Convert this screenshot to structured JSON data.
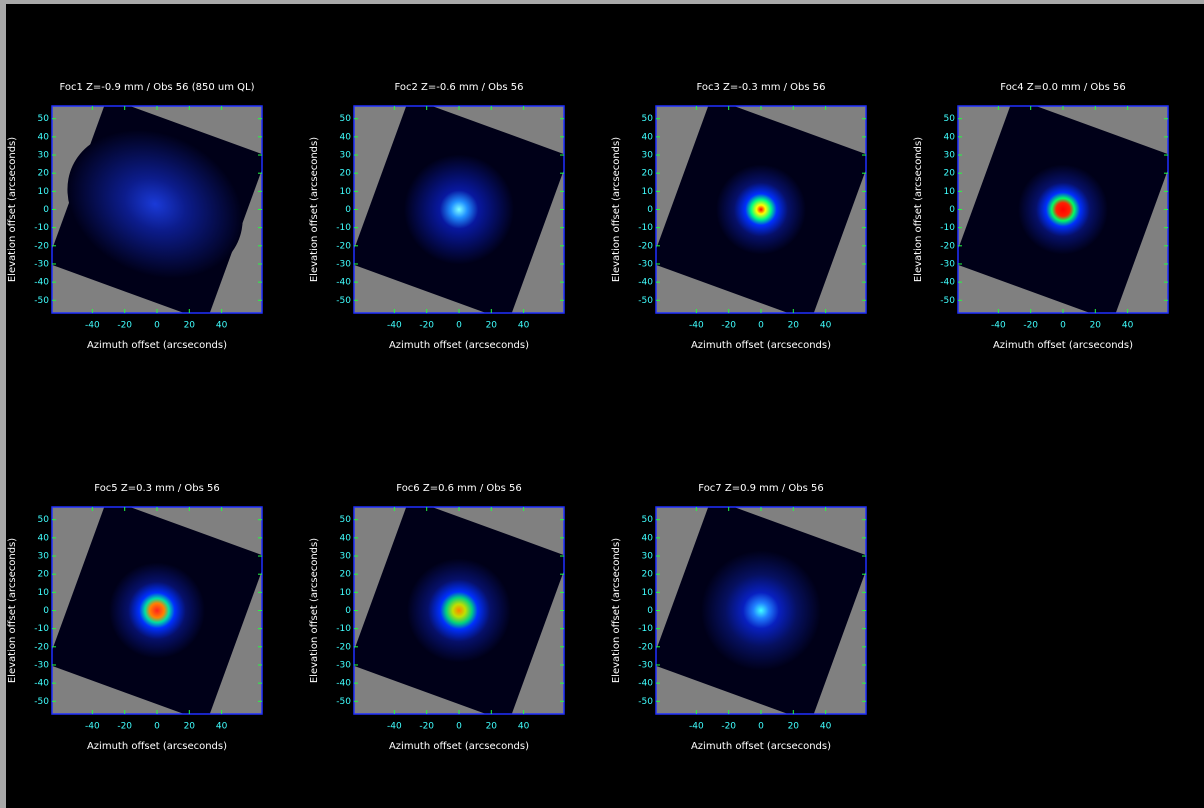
{
  "chart_data": [
    {
      "type": "image",
      "title": "Foc1 Z=-0.9 mm / Obs 56 (850 um QL)",
      "xlabel": "Azimuth offset (arcseconds)",
      "ylabel": "Elevation offset (arcseconds)",
      "xlim": [
        -65,
        65
      ],
      "ylim": [
        -57,
        57
      ],
      "xticks": [
        -40,
        -20,
        0,
        20,
        40
      ],
      "yticks": [
        -50,
        -40,
        -30,
        -20,
        -10,
        0,
        10,
        20,
        30,
        40,
        50
      ]
    },
    {
      "type": "image",
      "title": "Foc2 Z=-0.6 mm / Obs 56",
      "xlabel": "Azimuth offset (arcseconds)",
      "ylabel": "Elevation offset (arcseconds)",
      "xlim": [
        -65,
        65
      ],
      "ylim": [
        -57,
        57
      ],
      "xticks": [
        -40,
        -20,
        0,
        20,
        40
      ],
      "yticks": [
        -50,
        -40,
        -30,
        -20,
        -10,
        0,
        10,
        20,
        30,
        40,
        50
      ]
    },
    {
      "type": "image",
      "title": "Foc3 Z=-0.3 mm / Obs 56",
      "xlabel": "Azimuth offset (arcseconds)",
      "ylabel": "Elevation offset (arcseconds)",
      "xlim": [
        -65,
        65
      ],
      "ylim": [
        -57,
        57
      ],
      "xticks": [
        -40,
        -20,
        0,
        20,
        40
      ],
      "yticks": [
        -50,
        -40,
        -30,
        -20,
        -10,
        0,
        10,
        20,
        30,
        40,
        50
      ]
    },
    {
      "type": "image",
      "title": "Foc4 Z=0.0 mm / Obs 56",
      "xlabel": "Azimuth offset (arcseconds)",
      "ylabel": "Elevation offset (arcseconds)",
      "xlim": [
        -65,
        65
      ],
      "ylim": [
        -57,
        57
      ],
      "xticks": [
        -40,
        -20,
        0,
        20,
        40
      ],
      "yticks": [
        -50,
        -40,
        -30,
        -20,
        -10,
        0,
        10,
        20,
        30,
        40,
        50
      ]
    },
    {
      "type": "image",
      "title": "Foc5 Z=0.3 mm / Obs 56",
      "xlabel": "Azimuth offset (arcseconds)",
      "ylabel": "Elevation offset (arcseconds)",
      "xlim": [
        -65,
        65
      ],
      "ylim": [
        -57,
        57
      ],
      "xticks": [
        -40,
        -20,
        0,
        20,
        40
      ],
      "yticks": [
        -50,
        -40,
        -30,
        -20,
        -10,
        0,
        10,
        20,
        30,
        40,
        50
      ]
    },
    {
      "type": "image",
      "title": "Foc6 Z=0.6 mm / Obs 56",
      "xlabel": "Azimuth offset (arcseconds)",
      "ylabel": "Elevation offset (arcseconds)",
      "xlim": [
        -65,
        65
      ],
      "ylim": [
        -57,
        57
      ],
      "xticks": [
        -40,
        -20,
        0,
        20,
        40
      ],
      "yticks": [
        -50,
        -40,
        -30,
        -20,
        -10,
        0,
        10,
        20,
        30,
        40,
        50
      ]
    },
    {
      "type": "image",
      "title": "Foc7 Z=0.9 mm / Obs 56",
      "xlabel": "Azimuth offset (arcseconds)",
      "ylabel": "Elevation offset (arcseconds)",
      "xlim": [
        -65,
        65
      ],
      "ylim": [
        -57,
        57
      ],
      "xticks": [
        -40,
        -20,
        0,
        20,
        40
      ],
      "yticks": [
        -50,
        -40,
        -30,
        -20,
        -10,
        0,
        10,
        20,
        30,
        40,
        50
      ]
    }
  ]
}
